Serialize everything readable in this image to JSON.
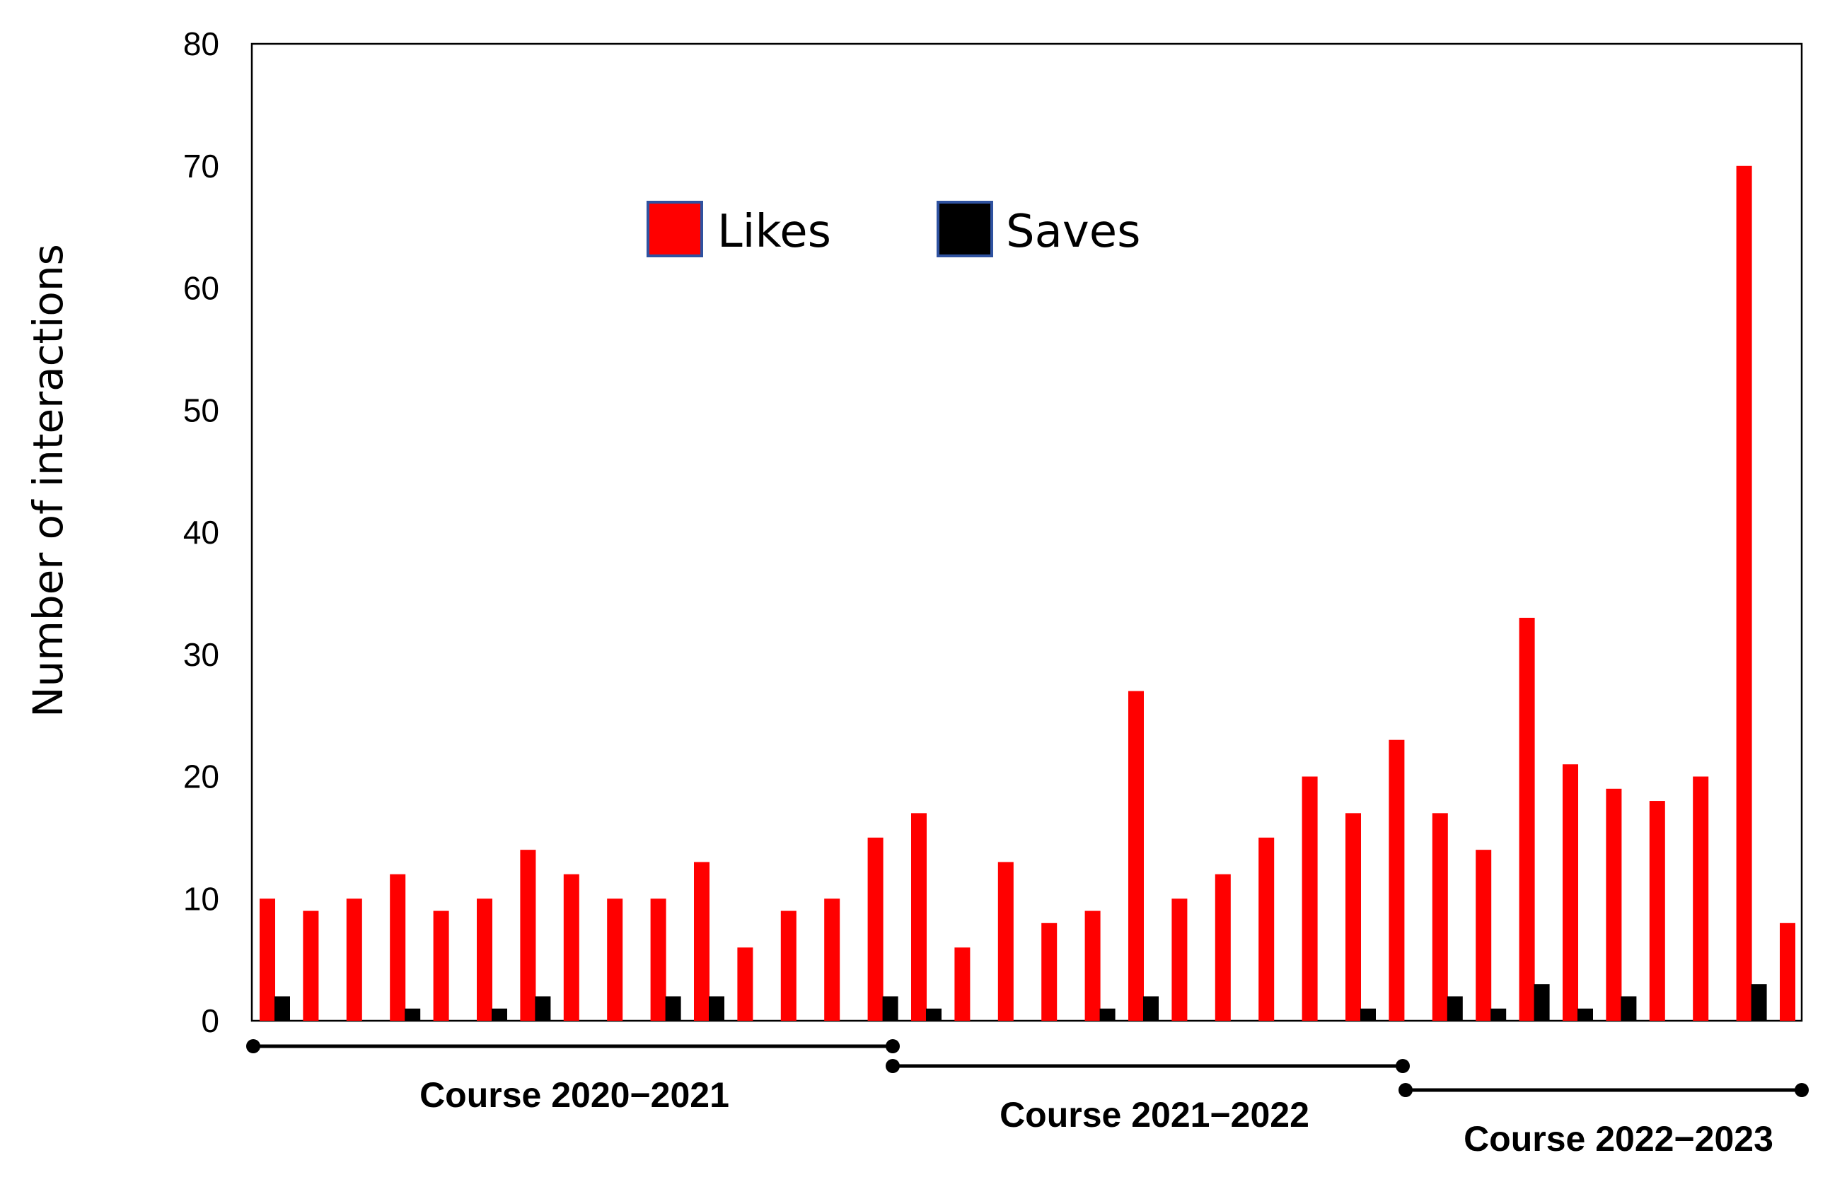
{
  "chart_data": {
    "type": "bar",
    "ylabel": "Number of interactions",
    "xlabel": "",
    "ylim": [
      0,
      80
    ],
    "yticks": [
      0,
      10,
      20,
      30,
      40,
      50,
      60,
      70,
      80
    ],
    "grid": false,
    "legend_position": "top-center",
    "series": [
      {
        "name": "Likes",
        "color": "#ff0000",
        "values": [
          10,
          9,
          10,
          12,
          9,
          10,
          14,
          12,
          10,
          10,
          13,
          6,
          9,
          10,
          15,
          17,
          6,
          13,
          8,
          9,
          27,
          10,
          12,
          15,
          20,
          17,
          23,
          17,
          14,
          33,
          21,
          19,
          18,
          20,
          70,
          8
        ]
      },
      {
        "name": "Saves",
        "color": "#000000",
        "values": [
          2,
          0,
          0,
          1,
          0,
          1,
          2,
          0,
          0,
          2,
          2,
          0,
          0,
          0,
          2,
          1,
          0,
          0,
          0,
          1,
          2,
          0,
          0,
          0,
          0,
          1,
          0,
          2,
          1,
          3,
          1,
          2,
          0,
          0,
          3,
          0
        ]
      }
    ],
    "courses": [
      {
        "label": "Course 2020−2021",
        "start_index": 0,
        "end_index": 14
      },
      {
        "label": "Course 2021−2022",
        "start_index": 15,
        "end_index": 26
      },
      {
        "label": "Course 2022−2023",
        "start_index": 27,
        "end_index": 35
      }
    ]
  }
}
